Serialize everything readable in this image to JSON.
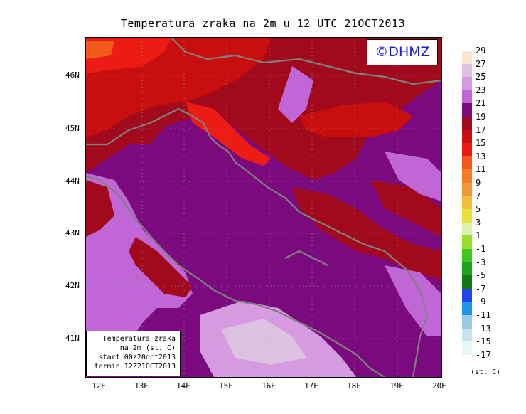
{
  "title": "Temperatura zraka na 2m u 12 UTC 21OCT2013",
  "logo": "©DHMZ",
  "info": {
    "line1": "Temperatura zraka",
    "line2": "na 2m (st. C)",
    "line3": "start 00z20oct2013",
    "line4": "termin 12Z21OCT2013"
  },
  "lat_labels": [
    "46N",
    "45N",
    "44N",
    "43N",
    "42N",
    "41N"
  ],
  "lon_labels": [
    "12E",
    "13E",
    "14E",
    "15E",
    "16E",
    "17E",
    "18E",
    "19E",
    "20E"
  ],
  "legend": {
    "levels": [
      "29",
      "27",
      "25",
      "23",
      "21",
      "19",
      "17",
      "15",
      "13",
      "11",
      "9",
      "7",
      "5",
      "3",
      "1",
      "-1",
      "-3",
      "-5",
      "-7",
      "-9",
      "-11",
      "-13",
      "-15",
      "-17"
    ],
    "colors": [
      "#fbe6d0",
      "#dcc1e1",
      "#d59ae0",
      "#c166d6",
      "#7d0a7e",
      "#a00a1c",
      "#c80e0e",
      "#ec1c14",
      "#f45a1c",
      "#f57c24",
      "#ee9a34",
      "#f0c038",
      "#e8e03a",
      "#ddf0b0",
      "#9ade2c",
      "#3cc81c",
      "#1aa81a",
      "#127a12",
      "#2244ec",
      "#1e96ea",
      "#98cce4",
      "#c9e3ee",
      "#e8f7f7"
    ],
    "unit": "(st. C)"
  },
  "field": {
    "description_free": true,
    "background": "#7a0a7e"
  }
}
